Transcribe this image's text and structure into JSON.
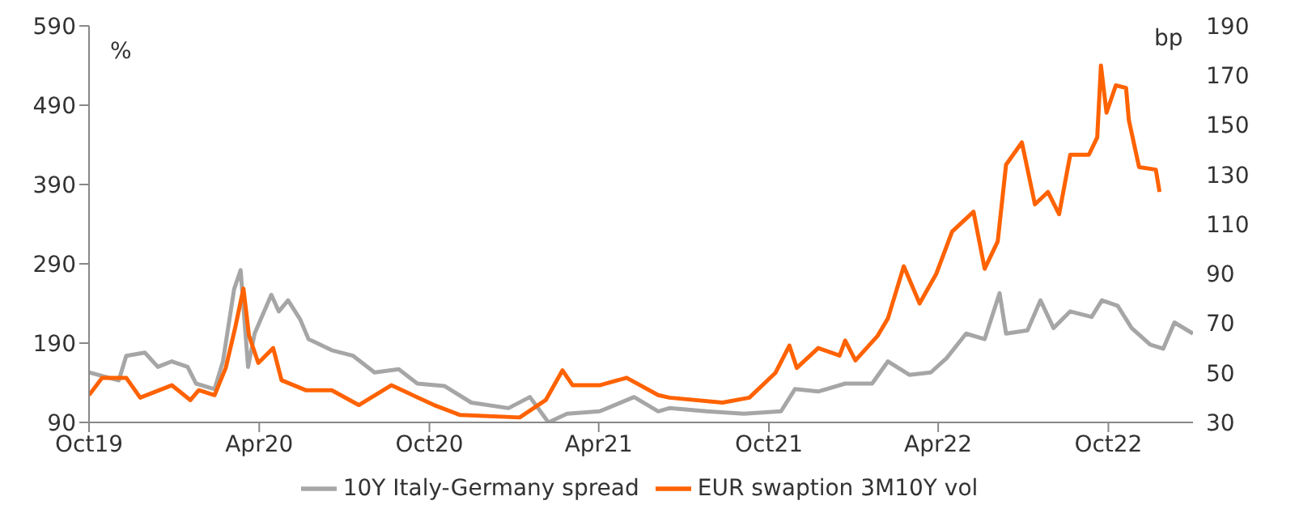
{
  "chart_data": {
    "type": "line",
    "ylabel": "%",
    "y2label": "bp",
    "legend": "bottom",
    "marker": "none",
    "line_style": "solid",
    "xlim": [
      "2019-10-01",
      "2022-12-31"
    ],
    "xticks": [
      {
        "value": "2019-10-01",
        "label": "Oct19"
      },
      {
        "value": "2020-04-01",
        "label": "Apr20"
      },
      {
        "value": "2020-10-01",
        "label": "Oct20"
      },
      {
        "value": "2021-04-01",
        "label": "Apr21"
      },
      {
        "value": "2021-10-01",
        "label": "Oct21"
      },
      {
        "value": "2022-04-01",
        "label": "Apr22"
      },
      {
        "value": "2022-10-01",
        "label": "Oct22"
      }
    ],
    "ylim": [
      90,
      590
    ],
    "yticks": [
      90,
      190,
      290,
      390,
      490,
      590
    ],
    "y2lim": [
      30,
      190
    ],
    "y2ticks": [
      30,
      50,
      70,
      90,
      110,
      130,
      150,
      170,
      190
    ],
    "series": [
      {
        "name": "10Y Italy-Germany spread",
        "color": "#a6a6a6",
        "x": [
          "2019-10-01",
          "2019-11-02",
          "2019-11-10",
          "2019-11-30",
          "2019-12-14",
          "2019-12-29",
          "2020-01-15",
          "2020-01-24",
          "2020-02-13",
          "2020-02-22",
          "2020-03-05",
          "2020-03-12",
          "2020-03-20",
          "2020-03-27",
          "2020-04-14",
          "2020-04-22",
          "2020-05-02",
          "2020-05-15",
          "2020-05-24",
          "2020-06-18",
          "2020-07-11",
          "2020-08-03",
          "2020-08-29",
          "2020-09-18",
          "2020-10-17",
          "2020-11-15",
          "2020-12-25",
          "2021-01-17",
          "2021-02-06",
          "2021-02-26",
          "2021-04-02",
          "2021-05-09",
          "2021-06-04",
          "2021-06-16",
          "2021-07-26",
          "2021-09-04",
          "2021-10-14",
          "2021-10-29",
          "2021-11-23",
          "2021-12-22",
          "2022-01-20",
          "2022-02-06",
          "2022-03-01",
          "2022-03-24",
          "2022-04-10",
          "2022-05-01",
          "2022-05-21",
          "2022-06-06",
          "2022-06-13",
          "2022-07-06",
          "2022-07-20",
          "2022-08-03",
          "2022-08-21",
          "2022-09-13",
          "2022-09-24",
          "2022-10-11",
          "2022-10-26",
          "2022-11-15",
          "2022-11-29",
          "2022-12-11",
          "2022-12-31"
        ],
        "values": [
          153,
          143,
          174,
          178,
          160,
          167,
          160,
          139,
          132,
          167,
          258,
          282,
          160,
          202,
          251,
          230,
          244,
          220,
          195,
          181,
          174,
          153,
          157,
          139,
          136,
          115,
          108,
          122,
          90,
          101,
          104,
          122,
          104,
          108,
          104,
          101,
          104,
          132,
          129,
          139,
          139,
          167,
          150,
          153,
          171,
          202,
          195,
          253,
          202,
          206,
          244,
          209,
          230,
          223,
          244,
          237,
          209,
          188,
          183,
          216,
          202
        ]
      },
      {
        "name": "EUR swaption 3M10Y vol",
        "color": "#ff6200",
        "axis": "y2",
        "x": [
          "2019-10-01",
          "2019-10-15",
          "2019-11-10",
          "2019-11-25",
          "2019-12-29",
          "2020-01-18",
          "2020-01-27",
          "2020-02-13",
          "2020-02-25",
          "2020-03-06",
          "2020-03-15",
          "2020-03-21",
          "2020-03-31",
          "2020-04-16",
          "2020-04-25",
          "2020-05-21",
          "2020-06-18",
          "2020-07-17",
          "2020-08-21",
          "2020-10-06",
          "2020-11-03",
          "2021-01-06",
          "2021-02-03",
          "2021-02-21",
          "2021-03-04",
          "2021-04-02",
          "2021-05-01",
          "2021-06-04",
          "2021-06-16",
          "2021-08-12",
          "2021-09-10",
          "2021-10-08",
          "2021-10-23",
          "2021-10-31",
          "2021-11-23",
          "2021-12-16",
          "2021-12-22",
          "2022-01-02",
          "2022-01-26",
          "2022-02-06",
          "2022-02-23",
          "2022-03-12",
          "2022-03-30",
          "2022-04-16",
          "2022-05-09",
          "2022-05-21",
          "2022-06-04",
          "2022-06-13",
          "2022-06-30",
          "2022-07-14",
          "2022-07-28",
          "2022-08-09",
          "2022-08-21",
          "2022-09-10",
          "2022-09-19",
          "2022-09-23",
          "2022-09-29",
          "2022-10-09",
          "2022-10-20",
          "2022-10-23",
          "2022-11-03",
          "2022-11-21",
          "2022-11-25"
        ],
        "values": [
          41,
          48,
          48,
          40,
          45,
          39,
          43,
          41,
          52,
          68,
          84,
          65,
          54,
          60,
          47,
          43,
          43,
          37,
          45,
          37,
          33,
          32,
          39,
          51,
          45,
          45,
          48,
          41,
          40,
          38,
          40,
          50,
          61,
          52,
          60,
          57,
          63,
          55,
          65,
          72,
          93,
          78,
          90,
          107,
          115,
          92,
          103,
          134,
          143,
          118,
          123,
          114,
          138,
          138,
          145,
          174,
          155,
          166,
          165,
          152,
          133,
          132,
          123
        ]
      }
    ]
  }
}
